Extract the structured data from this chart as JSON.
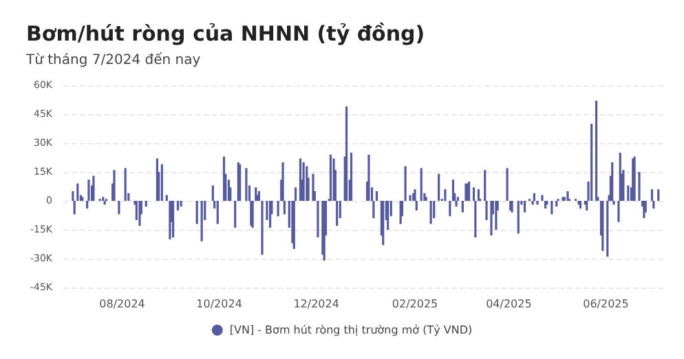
{
  "chart_data": {
    "type": "bar",
    "title": "Bơm/hút ròng của NHNN (tỷ đồng)",
    "subtitle": "Từ tháng 7/2024 đến nay",
    "x": [
      "2024-07-01",
      "2024-07-02",
      "2024-07-04",
      "2024-07-06",
      "2024-07-07",
      "2024-07-10",
      "2024-07-11",
      "2024-07-13",
      "2024-07-14",
      "2024-07-18",
      "2024-07-20",
      "2024-07-21",
      "2024-07-22",
      "2024-07-26",
      "2024-07-27",
      "2024-07-30",
      "2024-08-03",
      "2024-08-05",
      "2024-08-09",
      "2024-08-10",
      "2024-08-12",
      "2024-08-13",
      "2024-08-16",
      "2024-08-23",
      "2024-08-24",
      "2024-08-26",
      "2024-08-29",
      "2024-08-31",
      "2024-09-01",
      "2024-09-02",
      "2024-09-05",
      "2024-09-07",
      "2024-09-17",
      "2024-09-20",
      "2024-09-22",
      "2024-09-27",
      "2024-09-28",
      "2024-09-30",
      "2024-10-04",
      "2024-10-05",
      "2024-10-07",
      "2024-10-08",
      "2024-10-11",
      "2024-10-13",
      "2024-10-14",
      "2024-10-18",
      "2024-10-20",
      "2024-10-21",
      "2024-10-22",
      "2024-10-24",
      "2024-10-25",
      "2024-10-26",
      "2024-10-28",
      "2024-10-31",
      "2024-11-02",
      "2024-11-03",
      "2024-11-07",
      "2024-11-09",
      "2024-11-10",
      "2024-11-11",
      "2024-11-14",
      "2024-11-16",
      "2024-11-17",
      "2024-11-18",
      "2024-11-21",
      "2024-11-22",
      "2024-11-23",
      "2024-11-25",
      "2024-11-26",
      "2024-11-29",
      "2024-11-30",
      "2024-12-02",
      "2024-12-05",
      "2024-12-06",
      "2024-12-07",
      "2024-12-09",
      "2024-12-10",
      "2024-12-12",
      "2024-12-13",
      "2024-12-14",
      "2024-12-16",
      "2024-12-19",
      "2024-12-20",
      "2024-12-22",
      "2024-12-23",
      "2025-01-02",
      "2025-01-03",
      "2025-01-05",
      "2025-01-06",
      "2025-01-08",
      "2025-01-11",
      "2025-01-12",
      "2025-01-14",
      "2025-01-15",
      "2025-01-17",
      "2025-01-23",
      "2025-01-24",
      "2025-01-26",
      "2025-01-29",
      "2025-01-31",
      "2025-02-01",
      "2025-02-02",
      "2025-02-05",
      "2025-02-07",
      "2025-02-08",
      "2025-02-11",
      "2025-02-13",
      "2025-02-16",
      "2025-02-18",
      "2025-02-20",
      "2025-02-23",
      "2025-02-25",
      "2025-02-26",
      "2025-02-27",
      "2025-02-28",
      "2025-03-03",
      "2025-03-05",
      "2025-03-06",
      "2025-03-07",
      "2025-03-10",
      "2025-03-11",
      "2025-03-13",
      "2025-03-14",
      "2025-03-17",
      "2025-03-18",
      "2025-03-21",
      "2025-03-22",
      "2025-03-24",
      "2025-03-25",
      "2025-03-31",
      "2025-04-02",
      "2025-04-03",
      "2025-04-07",
      "2025-04-09",
      "2025-04-11",
      "2025-04-14",
      "2025-04-16",
      "2025-04-17",
      "2025-04-19",
      "2025-04-22",
      "2025-04-24",
      "2025-04-25",
      "2025-04-28",
      "2025-05-01",
      "2025-05-02",
      "2025-05-05",
      "2025-05-06",
      "2025-05-08",
      "2025-05-09",
      "2025-05-13",
      "2025-05-15",
      "2025-05-16",
      "2025-05-19",
      "2025-05-20",
      "2025-05-21",
      "2025-05-23",
      "2025-05-26",
      "2025-05-27",
      "2025-05-29",
      "2025-05-30",
      "2025-06-02",
      "2025-06-03",
      "2025-06-04",
      "2025-06-05",
      "2025-06-06",
      "2025-06-09",
      "2025-06-10",
      "2025-06-11",
      "2025-06-12",
      "2025-06-15",
      "2025-06-17",
      "2025-06-18",
      "2025-06-19",
      "2025-06-22",
      "2025-06-24",
      "2025-06-25",
      "2025-06-26",
      "2025-06-30",
      "2025-07-01",
      "2025-07-04"
    ],
    "series": [
      {
        "name": "[VN] - Bơm hút ròng thị trường mở (Tỷ VND)",
        "color": "#565b9e",
        "values": [
          5000,
          -7000,
          9000,
          3000,
          2000,
          -4000,
          11000,
          8000,
          13000,
          1000,
          2000,
          -2000,
          1000,
          9000,
          16000,
          -7000,
          17000,
          4000,
          -2000,
          -10000,
          -13000,
          -7000,
          -3000,
          22000,
          15000,
          19000,
          3000,
          -20000,
          -11000,
          -19000,
          -5000,
          -3000,
          -12000,
          -21000,
          -10000,
          8000,
          -4000,
          -12000,
          23000,
          14000,
          11000,
          7000,
          -14000,
          20000,
          19000,
          17000,
          8000,
          -13000,
          -14000,
          7000,
          3000,
          5000,
          -28000,
          -10000,
          -14000,
          -7000,
          -8000,
          11000,
          20000,
          -7000,
          -14000,
          -22000,
          -25000,
          7000,
          22000,
          11000,
          20000,
          18000,
          12000,
          14000,
          5000,
          -19000,
          -28000,
          -31000,
          -18000,
          1000,
          24000,
          22000,
          16000,
          -13000,
          -9000,
          23000,
          49000,
          11000,
          25000,
          10000,
          24000,
          7000,
          -9000,
          5000,
          -18000,
          -23000,
          -10000,
          -15000,
          -8000,
          -12000,
          -8000,
          18000,
          3000,
          4000,
          6000,
          -5000,
          17000,
          4000,
          2000,
          -12000,
          -9000,
          14000,
          1000,
          6000,
          -8000,
          11000,
          4000,
          -3000,
          2000,
          -6000,
          9000,
          9000,
          10000,
          7000,
          -19000,
          6000,
          1000,
          16000,
          -10000,
          -18000,
          -7000,
          -15000,
          -5000,
          17000,
          -5000,
          -6000,
          -17000,
          -2000,
          -6000,
          1000,
          -2000,
          4000,
          -2000,
          3000,
          -4000,
          -2000,
          -7000,
          -3000,
          1000,
          2000,
          2000,
          5000,
          1000,
          1000,
          -2000,
          -4000,
          -2000,
          -5000,
          10000,
          40000,
          52000,
          2000,
          -18000,
          -26000,
          -29000,
          3000,
          13000,
          20000,
          -2000,
          -11000,
          25000,
          14000,
          16000,
          8000,
          7000,
          22000,
          23000,
          15000,
          -3000,
          -9000,
          -6000,
          6000,
          -4000,
          6000
        ]
      }
    ],
    "xlim": [
      "2024-06-25",
      "2025-07-08"
    ],
    "xticks": [
      {
        "value": "2024-08-01",
        "label": "08/2024"
      },
      {
        "value": "2024-10-01",
        "label": "10/2024"
      },
      {
        "value": "2024-12-01",
        "label": "12/2024"
      },
      {
        "value": "2025-02-01",
        "label": "02/2025"
      },
      {
        "value": "2025-04-01",
        "label": "04/2025"
      },
      {
        "value": "2025-06-01",
        "label": "06/2025"
      }
    ],
    "ylim": [
      -45000,
      60000
    ],
    "yticks": [
      {
        "value": -45000,
        "label": "-45K"
      },
      {
        "value": -30000,
        "label": "-30K"
      },
      {
        "value": -15000,
        "label": "-15K"
      },
      0,
      {
        "value": 15000,
        "label": "15K"
      },
      {
        "value": 30000,
        "label": "30K"
      },
      {
        "value": 45000,
        "label": "45K"
      },
      {
        "value": 60000,
        "label": "60K"
      }
    ],
    "grid": "y",
    "legend": "bottom"
  }
}
